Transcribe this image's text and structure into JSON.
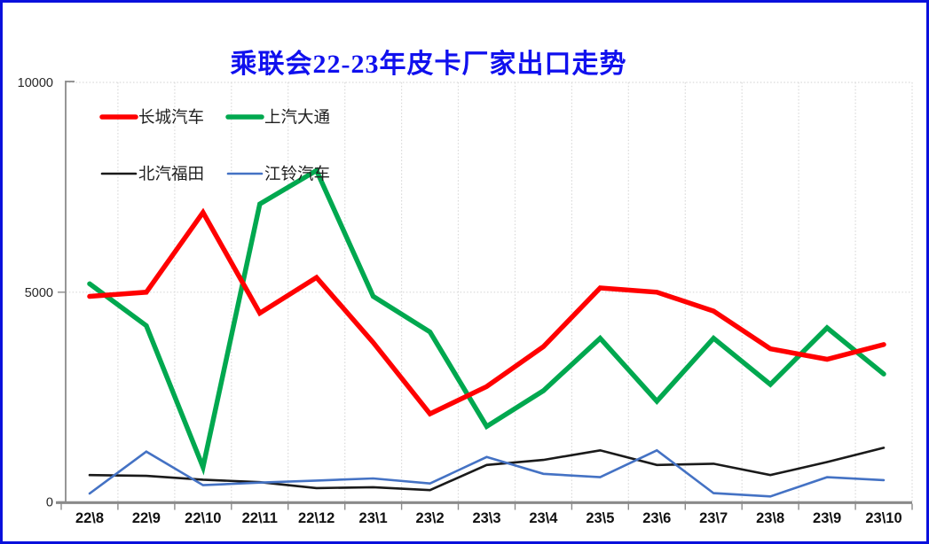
{
  "frame": {
    "border_color": "#0a10dc",
    "background": "#ffffff"
  },
  "chart_data": {
    "type": "line",
    "title": "乘联会22-23年皮卡厂家出口走势",
    "title_color": "#1010ee",
    "xlabel": "",
    "ylabel": "",
    "ylim": [
      0,
      10000
    ],
    "y_ticks": [
      0,
      5000,
      10000
    ],
    "y_tick_labels": [
      "0",
      "5000",
      "10000"
    ],
    "grid": "dotted",
    "grid_color": "#d9d9d9",
    "axis_color": "#8a8a8a",
    "tick_label_color": "#262626",
    "x_label_color": "#111111",
    "legend_position": "top-left-inside",
    "categories": [
      "22\\8",
      "22\\9",
      "22\\10",
      "22\\11",
      "22\\12",
      "23\\1",
      "23\\2",
      "23\\3",
      "23\\4",
      "23\\5",
      "23\\6",
      "23\\7",
      "23\\8",
      "23\\9",
      "23\\10"
    ],
    "series": [
      {
        "name": "长城汽车",
        "color": "#ff0000",
        "width": 5.5,
        "values": [
          4900,
          5000,
          6900,
          4500,
          5350,
          3800,
          2100,
          2750,
          3700,
          5100,
          5000,
          4550,
          3650,
          3400,
          3750
        ]
      },
      {
        "name": "上汽大通",
        "color": "#00a84f",
        "width": 5.5,
        "values": [
          5200,
          4200,
          830,
          7100,
          7900,
          4900,
          4050,
          1800,
          2650,
          3900,
          2400,
          3900,
          2800,
          4150,
          3050
        ]
      },
      {
        "name": "北汽福田",
        "color": "#1a1a1a",
        "width": 2.6,
        "values": [
          640,
          620,
          530,
          470,
          330,
          350,
          280,
          880,
          1000,
          1230,
          880,
          910,
          640,
          950,
          1290
        ]
      },
      {
        "name": "江铃汽车",
        "color": "#4472c4",
        "width": 2.6,
        "values": [
          200,
          1200,
          400,
          460,
          510,
          560,
          440,
          1070,
          670,
          590,
          1230,
          210,
          130,
          590,
          520
        ]
      }
    ]
  }
}
